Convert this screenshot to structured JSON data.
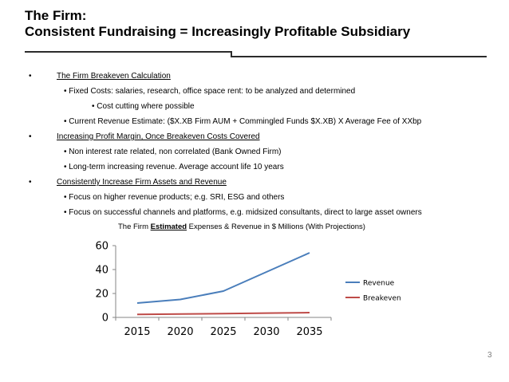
{
  "slide": {
    "title_line1": "The Firm:",
    "title_line2": "Consistent Fundraising = Increasingly Profitable Subsidiary",
    "page_number": "3"
  },
  "bullets": {
    "breakeven_heading": "The Firm Breakeven Calculation",
    "fixed_costs": "• Fixed Costs: salaries, research, office space rent:  to be analyzed and determined",
    "cost_cutting": "• Cost cutting where possible",
    "revenue_estimate": "• Current Revenue Estimate: ($X.XB Firm AUM + Commingled Funds $X.XB) X Average Fee of XXbp",
    "margin_heading": "Increasing Profit Margin, Once Breakeven Costs Covered",
    "non_interest": "• Non interest rate related, non correlated (Bank Owned Firm)",
    "long_term": "• Long-term increasing revenue. Average account life 10 years",
    "assets_heading": "Consistently Increase Firm Assets and Revenue",
    "higher_revenue": "• Focus on higher revenue products; e.g. SRI, ESG and others",
    "channels": "• Focus on successful channels and platforms, e.g. midsized consultants, direct to large asset owners"
  },
  "chart_title": {
    "prefix": "The Firm ",
    "emphasis": "Estimated",
    "suffix": " Expenses & Revenue in $ Millions (With Projections)"
  },
  "chart_data": {
    "type": "line",
    "x": [
      2015,
      2020,
      2025,
      2030,
      2035
    ],
    "series": [
      {
        "name": "Revenue",
        "values": [
          12,
          15,
          22,
          38,
          54
        ],
        "color": "#4a7ebb"
      },
      {
        "name": "Breakeven",
        "values": [
          2.5,
          2.8,
          3.2,
          3.6,
          4.0
        ],
        "color": "#be4b48"
      }
    ],
    "ylim": [
      0,
      60
    ],
    "yticks": [
      0,
      20,
      40,
      60
    ],
    "grid": false,
    "legend": "right",
    "axis_color": "#868686"
  }
}
